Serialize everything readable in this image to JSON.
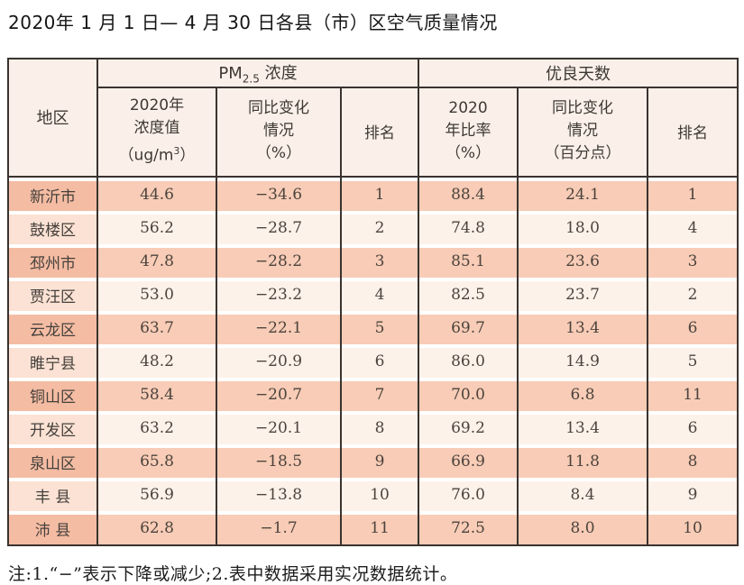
{
  "title": "2020年 1 月 1 日— 4 月 30 日各县（市）区空气质量情况",
  "table": {
    "headers": {
      "region": "地区",
      "pm_group": {
        "prefix": "PM",
        "sub": "2.5",
        "suffix": " 浓度"
      },
      "days_group": "优良天数",
      "pm_value": {
        "l1": "2020年",
        "l2": "浓度值",
        "l3a": "（ug/m",
        "l3sup": "3",
        "l3b": "）"
      },
      "pm_change": {
        "l1": "同比变化",
        "l2": "情况",
        "l3": "（%）"
      },
      "pm_rank": "排名",
      "days_ratio": {
        "l1": "2020",
        "l2": "年比率",
        "l3": "（%）"
      },
      "days_change": {
        "l1": "同比变化",
        "l2": "情况",
        "l3": "（百分点）"
      },
      "days_rank": "排名"
    }
  },
  "chart_data": {
    "type": "table",
    "title": "2020年1月1日—4月30日各县（市）区空气质量情况",
    "columns": [
      "地区",
      "PM2.5浓度 2020年浓度值（ug/m3）",
      "PM2.5浓度 同比变化情况（%）",
      "PM2.5浓度 排名",
      "优良天数 2020年比率（%）",
      "优良天数 同比变化情况（百分点）",
      "优良天数 排名"
    ],
    "rows": [
      [
        "新沂市",
        "44.6",
        "−34.6",
        "1",
        "88.4",
        "24.1",
        "1"
      ],
      [
        "鼓楼区",
        "56.2",
        "−28.7",
        "2",
        "74.8",
        "18.0",
        "4"
      ],
      [
        "邳州市",
        "47.8",
        "−28.2",
        "3",
        "85.1",
        "23.6",
        "3"
      ],
      [
        "贾汪区",
        "53.0",
        "−23.2",
        "4",
        "82.5",
        "23.7",
        "2"
      ],
      [
        "云龙区",
        "63.7",
        "−22.1",
        "5",
        "69.7",
        "13.4",
        "6"
      ],
      [
        "睢宁县",
        "48.2",
        "−20.9",
        "6",
        "86.0",
        "14.9",
        "5"
      ],
      [
        "铜山区",
        "58.4",
        "−20.7",
        "7",
        "70.0",
        "6.8",
        "11"
      ],
      [
        "开发区",
        "63.2",
        "−20.1",
        "8",
        "69.2",
        "13.4",
        "6"
      ],
      [
        "泉山区",
        "65.8",
        "−18.5",
        "9",
        "66.9",
        "11.8",
        "8"
      ],
      [
        "丰 县",
        "56.9",
        "−13.8",
        "10",
        "76.0",
        "8.4",
        "9"
      ],
      [
        "沛 县",
        "62.8",
        "−1.7",
        "11",
        "72.5",
        "8.0",
        "10"
      ]
    ]
  },
  "note": "注:1.“−”表示下降或减少;2.表中数据采用实况数据统计。",
  "colors": {
    "row_odd": "#f8ccb6",
    "row_odd_region": "#f4bca3",
    "row_even": "#fdf2ea",
    "row_even_region": "#fbe2d4",
    "header_bg": "#faf0e9",
    "border": "#3a332f"
  }
}
